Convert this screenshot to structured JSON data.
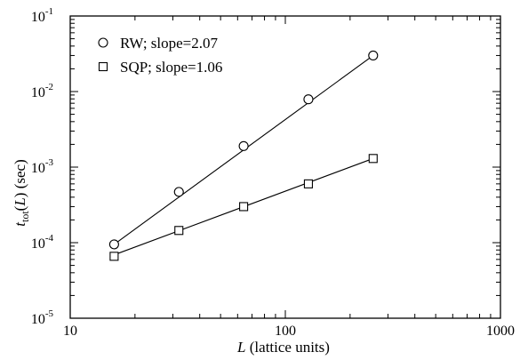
{
  "chart_data": {
    "type": "scatter",
    "title": "",
    "x_scale": "log",
    "y_scale": "log",
    "xlim": [
      10,
      1000
    ],
    "ylim": [
      1e-05,
      0.1
    ],
    "x_ticks": [
      {
        "value": 10,
        "label": "10"
      },
      {
        "value": 100,
        "label": "100"
      },
      {
        "value": 1000,
        "label": "1000"
      }
    ],
    "y_ticks": [
      {
        "value": 1e-05,
        "base": "10",
        "exp": "-5"
      },
      {
        "value": 0.0001,
        "base": "10",
        "exp": "-4"
      },
      {
        "value": 0.001,
        "base": "10",
        "exp": "-3"
      },
      {
        "value": 0.01,
        "base": "10",
        "exp": "-2"
      },
      {
        "value": 0.1,
        "base": "10",
        "exp": "-1"
      }
    ],
    "xlabel": {
      "italic": "L",
      "rest": " (lattice units)"
    },
    "ylabel": {
      "t": "t",
      "sub": "tot",
      "paren_open": "(",
      "L": "L",
      "paren_close": ") (sec)"
    },
    "legend_position": "top-left",
    "grid": false,
    "series": [
      {
        "name": "RW; slope=2.07",
        "marker": "circle",
        "x": [
          16,
          32,
          64,
          128,
          256
        ],
        "y": [
          9.5e-05,
          0.00047,
          0.0019,
          0.0079,
          0.03
        ],
        "fit": {
          "x": [
            16,
            256
          ],
          "y": [
            9.5e-05,
            0.03
          ]
        }
      },
      {
        "name": "SQP; slope=1.06",
        "marker": "square",
        "x": [
          16,
          32,
          64,
          128,
          256
        ],
        "y": [
          6.6e-05,
          0.000145,
          0.0003,
          0.0006,
          0.0013
        ],
        "fit": {
          "x": [
            16,
            256
          ],
          "y": [
            6.9e-05,
            0.0013
          ]
        }
      }
    ]
  }
}
